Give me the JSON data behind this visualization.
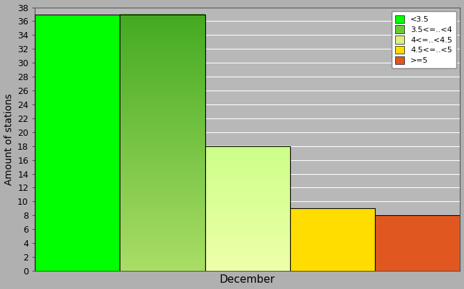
{
  "categories": [
    "December"
  ],
  "bars": [
    {
      "label": "<3.5",
      "value": 37,
      "color": "#00ff00",
      "color2": null
    },
    {
      "label": "3.5<=..<4",
      "value": 37,
      "color": "#66cc33",
      "color2": "#aadd55"
    },
    {
      "label": "4<=..<4.5",
      "value": 18,
      "color": "#ddee88",
      "color2": "#ccff88"
    },
    {
      "label": "4.5<=..<5",
      "value": 9,
      "color": "#ffdd00",
      "color2": null
    },
    {
      "label": ">=5",
      "value": 8,
      "color": "#e05820",
      "color2": null
    }
  ],
  "ylabel": "Amount of stations",
  "xlabel": "December",
  "ylim": [
    0,
    38
  ],
  "yticks": [
    0,
    2,
    4,
    6,
    8,
    10,
    12,
    14,
    16,
    18,
    20,
    22,
    24,
    26,
    28,
    30,
    32,
    34,
    36,
    38
  ],
  "background_color": "#b0b0b0",
  "plot_bg_color": "#b8b8b8",
  "grid_color": "#ffffff",
  "legend_labels": [
    "<3.5",
    "3.5<=..<4",
    "4<=..<4.5",
    "4.5<=..<5",
    ">=5"
  ],
  "legend_colors": [
    "#00ff00",
    "#66cc33",
    "#ddee88",
    "#ffdd00",
    "#e05820"
  ],
  "n_bars": 5,
  "bar_width": 0.2,
  "figsize": [
    6.67,
    4.15
  ],
  "dpi": 100
}
